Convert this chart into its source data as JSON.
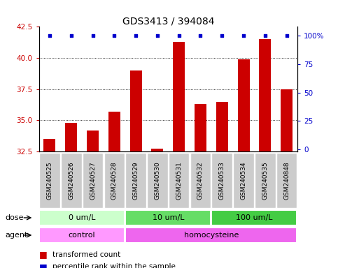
{
  "title": "GDS3413 / 394084",
  "samples": [
    "GSM240525",
    "GSM240526",
    "GSM240527",
    "GSM240528",
    "GSM240529",
    "GSM240530",
    "GSM240531",
    "GSM240532",
    "GSM240533",
    "GSM240534",
    "GSM240535",
    "GSM240848"
  ],
  "bar_values": [
    33.5,
    34.8,
    34.2,
    35.7,
    39.0,
    32.7,
    41.3,
    36.3,
    36.5,
    39.9,
    41.5,
    37.5
  ],
  "percentile_values": [
    100,
    100,
    100,
    100,
    100,
    100,
    100,
    100,
    100,
    100,
    100,
    100
  ],
  "bar_color": "#cc0000",
  "percentile_color": "#0000cc",
  "ymin": 32.5,
  "ymax": 42.5,
  "yticks": [
    32.5,
    35.0,
    37.5,
    40.0,
    42.5
  ],
  "right_yticks": [
    0,
    25,
    50,
    75,
    100
  ],
  "right_ytick_labels": [
    "0",
    "25",
    "50",
    "75",
    "100%"
  ],
  "dose_groups": [
    {
      "label": "0 um/L",
      "start": 0,
      "end": 3,
      "color": "#ccffcc"
    },
    {
      "label": "10 um/L",
      "start": 4,
      "end": 7,
      "color": "#66dd66"
    },
    {
      "label": "100 um/L",
      "start": 8,
      "end": 11,
      "color": "#44cc44"
    }
  ],
  "agent_groups": [
    {
      "label": "control",
      "start": 0,
      "end": 3,
      "color": "#ff99ff"
    },
    {
      "label": "homocysteine",
      "start": 4,
      "end": 11,
      "color": "#ee66ee"
    }
  ],
  "dose_label": "dose",
  "agent_label": "agent",
  "legend_bar_label": "transformed count",
  "legend_dot_label": "percentile rank within the sample",
  "sample_bg_color": "#cccccc",
  "title_fontsize": 10,
  "tick_fontsize": 7.5,
  "sample_fontsize": 6.5
}
